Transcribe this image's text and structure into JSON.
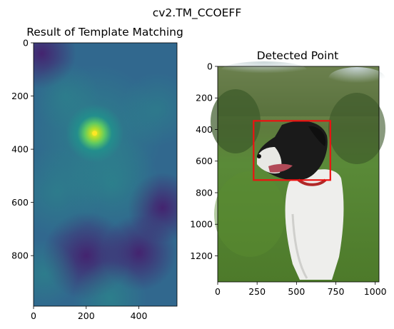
{
  "figure": {
    "suptitle": "cv2.TM_CCOEFF"
  },
  "chart_data": [
    {
      "type": "heatmap",
      "title": "Result of Template Matching",
      "colormap": "viridis",
      "xlim": [
        0,
        545
      ],
      "ylim": [
        0,
        990
      ],
      "y_inverted": true,
      "xticks": [
        0,
        200,
        400
      ],
      "yticks": [
        0,
        200,
        400,
        600,
        800
      ],
      "peak": {
        "x": 232,
        "y": 340
      },
      "blobs": [
        {
          "x": 232,
          "y": 340,
          "r": 110,
          "value": 1.0
        },
        {
          "x": 232,
          "y": 340,
          "r": 260,
          "value": 0.55
        },
        {
          "x": 300,
          "y": 530,
          "r": 180,
          "value": 0.45
        },
        {
          "x": 90,
          "y": 560,
          "r": 170,
          "value": 0.4
        },
        {
          "x": 470,
          "y": 250,
          "r": 140,
          "value": 0.32
        },
        {
          "x": 40,
          "y": 870,
          "r": 130,
          "value": 0.42
        },
        {
          "x": 290,
          "y": 960,
          "r": 140,
          "value": 0.5
        },
        {
          "x": 120,
          "y": 200,
          "r": 130,
          "value": 0.3
        }
      ],
      "dark_regions": [
        {
          "x": 30,
          "y": 40,
          "r": 120
        },
        {
          "x": 200,
          "y": 800,
          "r": 150
        },
        {
          "x": 400,
          "y": 790,
          "r": 130
        },
        {
          "x": 490,
          "y": 620,
          "r": 120
        }
      ]
    },
    {
      "type": "image",
      "title": "Detected Point",
      "xlim": [
        0,
        1024
      ],
      "ylim": [
        0,
        1365
      ],
      "y_inverted": true,
      "xticks": [
        0,
        250,
        500,
        750,
        1000
      ],
      "yticks": [
        0,
        200,
        400,
        600,
        800,
        1000,
        1200
      ],
      "detection_box": {
        "x1": 228,
        "y1": 345,
        "x2": 715,
        "y2": 720,
        "color": "#ee1111"
      }
    }
  ]
}
